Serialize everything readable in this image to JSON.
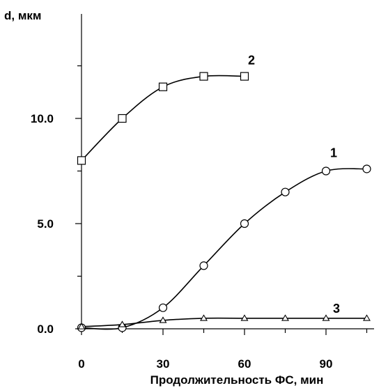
{
  "chart_data": {
    "type": "line",
    "ylabel": "d, мкм",
    "xlabel": "Продолжительность ФС, мин",
    "xlim": [
      0,
      110
    ],
    "ylim": [
      0,
      15
    ],
    "x_ticks": [
      0,
      30,
      60,
      90
    ],
    "x_minor_ticks": [
      15,
      45,
      75,
      105
    ],
    "y_ticks": [
      0,
      5,
      10
    ],
    "y_tick_labels": [
      "0.0",
      "5.0",
      "10.0"
    ],
    "y_minor_ticks": [
      2.5,
      7.5,
      12.5
    ],
    "grid": false,
    "series": [
      {
        "name": "1",
        "marker": "circle",
        "x": [
          0,
          15,
          30,
          45,
          60,
          75,
          90,
          105
        ],
        "y": [
          0.05,
          0.05,
          1.0,
          3.0,
          5.0,
          6.5,
          7.5,
          7.6
        ]
      },
      {
        "name": "2",
        "marker": "square",
        "x": [
          0,
          15,
          30,
          45,
          60
        ],
        "y": [
          8.0,
          10.0,
          11.5,
          12.0,
          12.0
        ]
      },
      {
        "name": "3",
        "marker": "triangle",
        "x": [
          0,
          15,
          30,
          45,
          60,
          75,
          90,
          105
        ],
        "y": [
          0.1,
          0.2,
          0.4,
          0.5,
          0.5,
          0.5,
          0.5,
          0.5
        ]
      }
    ]
  }
}
